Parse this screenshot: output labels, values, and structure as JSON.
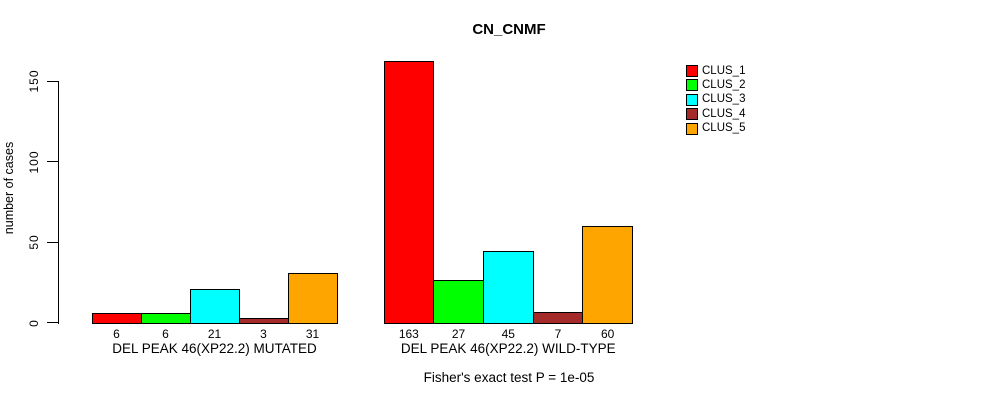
{
  "chart_data": {
    "type": "bar",
    "title": "CN_CNMF",
    "ylabel": "number of cases",
    "xlabel": "",
    "yticks": [
      0,
      50,
      100,
      150
    ],
    "ylim": [
      0,
      170
    ],
    "grid": false,
    "legend_position": "top-right",
    "categories": [
      "DEL PEAK 46(XP22.2) MUTATED",
      "DEL PEAK 46(XP22.2) WILD-TYPE"
    ],
    "series": [
      {
        "name": "CLUS_1",
        "color": "#ff0000",
        "values": [
          6,
          163
        ]
      },
      {
        "name": "CLUS_2",
        "color": "#00ff00",
        "values": [
          6,
          27
        ]
      },
      {
        "name": "CLUS_3",
        "color": "#00ffff",
        "values": [
          21,
          45
        ]
      },
      {
        "name": "CLUS_4",
        "color": "#a52a2a",
        "values": [
          3,
          7
        ]
      },
      {
        "name": "CLUS_5",
        "color": "#ffa500",
        "values": [
          31,
          60
        ]
      }
    ],
    "bar_value_labels_shown": true,
    "footnote": "Fisher's exact test P = 1e-05",
    "axis_color": "#000000",
    "bar_border_color": "#000000",
    "background_color": "#ffffff"
  }
}
